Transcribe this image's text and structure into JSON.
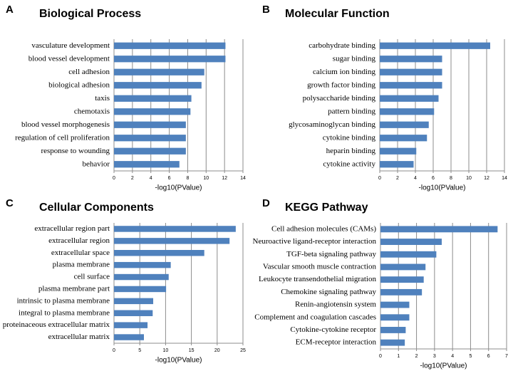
{
  "chart_data": [
    {
      "type": "hbar",
      "panel": "A",
      "title": "Biological Process",
      "xlabel": "-log10(PValue)",
      "color": "#4f81bd",
      "grid": true,
      "categories": [
        "vasculature development",
        "blood vessel development",
        "cell adhesion",
        "biological adhesion",
        "taxis",
        "chemotaxis",
        "blood vessel morphogenesis",
        "regulation of cell proliferation",
        "response to wounding",
        "behavior"
      ],
      "values": [
        12.1,
        12.1,
        9.8,
        9.5,
        8.4,
        8.3,
        7.8,
        7.8,
        7.8,
        7.1
      ],
      "xlim": [
        0,
        14
      ],
      "xticks": [
        0,
        2,
        4,
        6,
        8,
        10,
        12,
        14
      ]
    },
    {
      "type": "hbar",
      "panel": "B",
      "title": "Molecular Function",
      "xlabel": "-log10(PValue)",
      "color": "#4f81bd",
      "grid": true,
      "categories": [
        "carbohydrate binding",
        "sugar binding",
        "calcium ion binding",
        "growth factor binding",
        "polysaccharide binding",
        "pattern binding",
        "glycosaminoglycan binding",
        "cytokine binding",
        "heparin binding",
        "cytokine activity"
      ],
      "values": [
        12.4,
        7.0,
        7.0,
        7.0,
        6.6,
        6.1,
        5.5,
        5.3,
        4.1,
        3.8
      ],
      "xlim": [
        0,
        14
      ],
      "xticks": [
        0,
        2,
        4,
        6,
        8,
        10,
        12,
        14
      ]
    },
    {
      "type": "hbar",
      "panel": "C",
      "title": "Cellular Components",
      "xlabel": "-log10(PValue)",
      "color": "#4f81bd",
      "grid": true,
      "categories": [
        "extracellular region part",
        "extracellular region",
        "extracellular space",
        "plasma membrane",
        "cell surface",
        "plasma membrane part",
        "intrinsic to plasma membrane",
        "integral to plasma membrane",
        "proteinaceous extracellular matrix",
        "extracellular matrix"
      ],
      "values": [
        23.6,
        22.4,
        17.5,
        11.0,
        10.6,
        10.1,
        7.6,
        7.5,
        6.5,
        5.8
      ],
      "xlim": [
        0,
        25
      ],
      "xticks": [
        0,
        5,
        10,
        15,
        20,
        25
      ]
    },
    {
      "type": "hbar",
      "panel": "D",
      "title": "KEGG Pathway",
      "xlabel": "-log10(PValue)",
      "color": "#4f81bd",
      "grid": true,
      "categories": [
        "Cell adhesion molecules (CAMs)",
        "Neuroactive ligand-receptor interaction",
        "TGF-beta signaling pathway",
        "Vascular smooth muscle contraction",
        "Leukocyte transendothelial migration",
        "Chemokine signaling pathway",
        "Renin-angiotensin system",
        "Complement and coagulation cascades",
        "Cytokine-cytokine receptor",
        "ECM-receptor interaction"
      ],
      "values": [
        6.5,
        3.4,
        3.1,
        2.5,
        2.4,
        2.3,
        1.6,
        1.6,
        1.4,
        1.35
      ],
      "xlim": [
        0,
        7
      ],
      "xticks": [
        0,
        1,
        2,
        3,
        4,
        5,
        6,
        7
      ]
    }
  ]
}
